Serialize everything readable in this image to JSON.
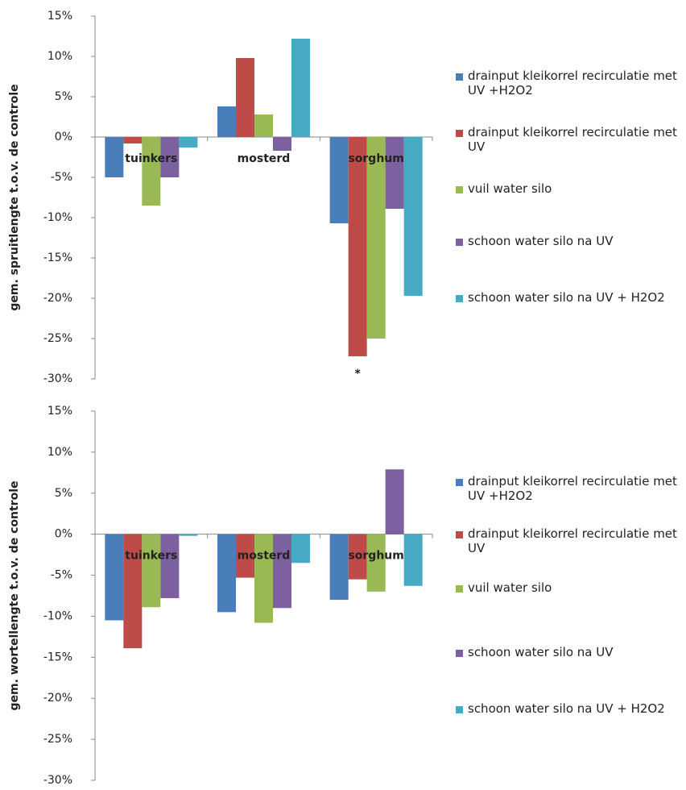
{
  "chart_data": [
    {
      "type": "bar",
      "ylabel": "gem. spruitlengte t.o.v. de controle",
      "categories": [
        "tuinkers",
        "mosterd",
        "sorghum"
      ],
      "series": [
        {
          "name": "drainput kleikorrel recirculatie met UV +H2O2",
          "color": "#4a7ebb",
          "values": [
            -5,
            3.8,
            -10.7
          ]
        },
        {
          "name": "drainput kleikorrel recirculatie met UV",
          "color": "#be4b48",
          "values": [
            -0.8,
            9.8,
            -27.2
          ]
        },
        {
          "name": "vuil water silo",
          "color": "#98b954",
          "values": [
            -8.5,
            2.8,
            -25
          ]
        },
        {
          "name": "schoon water silo na UV",
          "color": "#7d60a0",
          "values": [
            -5,
            -1.7,
            -8.9
          ]
        },
        {
          "name": "schoon water silo na UV + H2O2",
          "color": "#46aac5",
          "values": [
            -1.3,
            12.2,
            -19.7
          ]
        }
      ],
      "annotation": "*",
      "ylim": [
        -30,
        15
      ],
      "yticks": [
        {
          "value": -30,
          "label": "-30%"
        },
        {
          "value": -25,
          "label": "-25%"
        },
        {
          "value": -20,
          "label": "-20%"
        },
        {
          "value": -15,
          "label": "-15%"
        },
        {
          "value": -10,
          "label": "-10%"
        },
        {
          "value": -5,
          "label": "-5%"
        },
        {
          "value": 0,
          "label": "0%"
        },
        {
          "value": 5,
          "label": "5%"
        },
        {
          "value": 10,
          "label": "10%"
        },
        {
          "value": 15,
          "label": "15%"
        }
      ]
    },
    {
      "type": "bar",
      "ylabel": "gem. wortellengte t.o.v. de controle",
      "categories": [
        "tuinkers",
        "mosterd",
        "sorghum"
      ],
      "series": [
        {
          "name": "drainput kleikorrel recirculatie met UV +H2O2",
          "color": "#4a7ebb",
          "values": [
            -10.5,
            -9.5,
            -8
          ]
        },
        {
          "name": "drainput kleikorrel recirculatie met UV",
          "color": "#be4b48",
          "values": [
            -13.9,
            -5.3,
            -5.5
          ]
        },
        {
          "name": "vuil water silo",
          "color": "#98b954",
          "values": [
            -8.9,
            -10.8,
            -7
          ]
        },
        {
          "name": "schoon water silo na UV",
          "color": "#7d60a0",
          "values": [
            -7.8,
            -9,
            7.9
          ]
        },
        {
          "name": "schoon water silo na UV + H2O2",
          "color": "#46aac5",
          "values": [
            -0.2,
            -3.5,
            -6.3
          ]
        }
      ],
      "ylim": [
        -30,
        15
      ],
      "yticks": [
        {
          "value": -30,
          "label": "-30%"
        },
        {
          "value": -25,
          "label": "-25%"
        },
        {
          "value": -20,
          "label": "-20%"
        },
        {
          "value": -15,
          "label": "-15%"
        },
        {
          "value": -10,
          "label": "-10%"
        },
        {
          "value": -5,
          "label": "-5%"
        },
        {
          "value": 0,
          "label": "0%"
        },
        {
          "value": 5,
          "label": "5%"
        },
        {
          "value": 10,
          "label": "10%"
        },
        {
          "value": 15,
          "label": "15%"
        }
      ]
    }
  ]
}
